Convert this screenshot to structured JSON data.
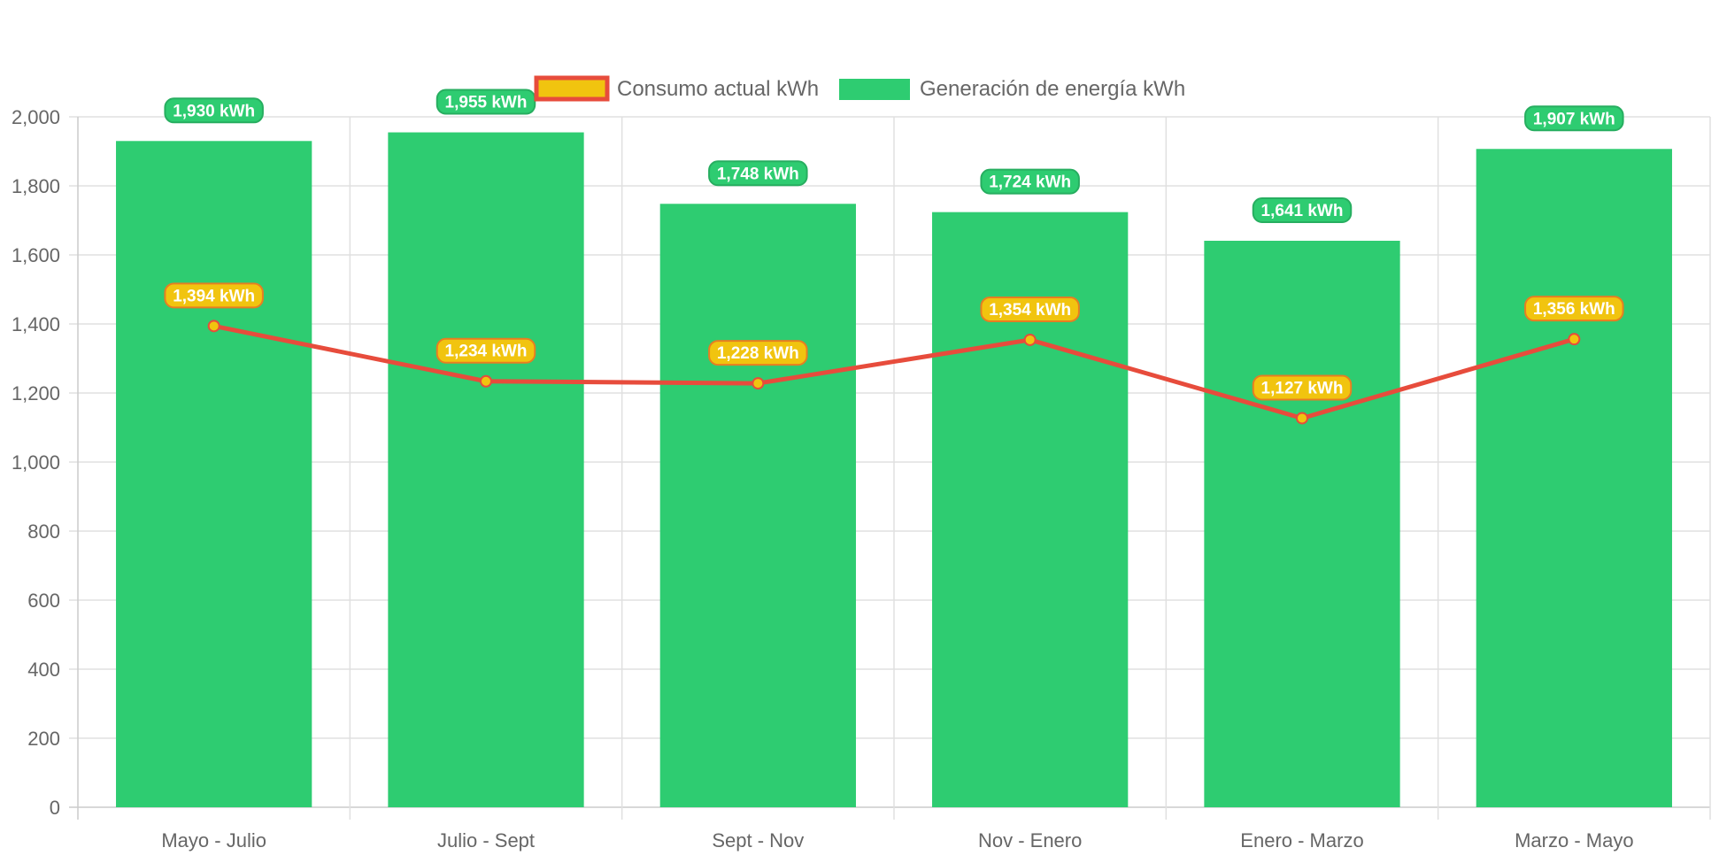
{
  "colors": {
    "bar_fill": "#2ecc71",
    "bar_badge_fill": "#2ecc71",
    "bar_badge_border": "#27ae60",
    "line_color": "#e74c3c",
    "point_fill": "#f1c40f",
    "line_badge_fill": "#f1c40f",
    "line_badge_border": "#e67e22",
    "grid": "#e0e0e0",
    "axis": "#cccccc",
    "text": "#666666"
  },
  "chart_data": {
    "type": "bar",
    "title": "",
    "xlabel": "",
    "ylabel": "",
    "categories": [
      "Mayo - Julio",
      "Julio - Sept",
      "Sept - Nov",
      "Nov - Enero",
      "Enero - Marzo",
      "Marzo - Mayo"
    ],
    "ylim": [
      0,
      2000
    ],
    "yticks": [
      "0",
      "200",
      "400",
      "600",
      "800",
      "1,000",
      "1,200",
      "1,400",
      "1,600",
      "1,800",
      "2,000"
    ],
    "grid": true,
    "legend_position": "top-center",
    "series": [
      {
        "name": "Consumo actual kWh",
        "type": "line",
        "values": [
          1394,
          1234,
          1228,
          1354,
          1127,
          1356
        ],
        "labels": [
          "1,394 kWh",
          "1,234 kWh",
          "1,228 kWh",
          "1,354 kWh",
          "1,127 kWh",
          "1,356 kWh"
        ]
      },
      {
        "name": "Generación de energía kWh",
        "type": "bar",
        "values": [
          1930,
          1955,
          1748,
          1724,
          1641,
          1907
        ],
        "labels": [
          "1,930 kWh",
          "1,955 kWh",
          "1,748 kWh",
          "1,724 kWh",
          "1,641 kWh",
          "1,907 kWh"
        ]
      }
    ]
  }
}
